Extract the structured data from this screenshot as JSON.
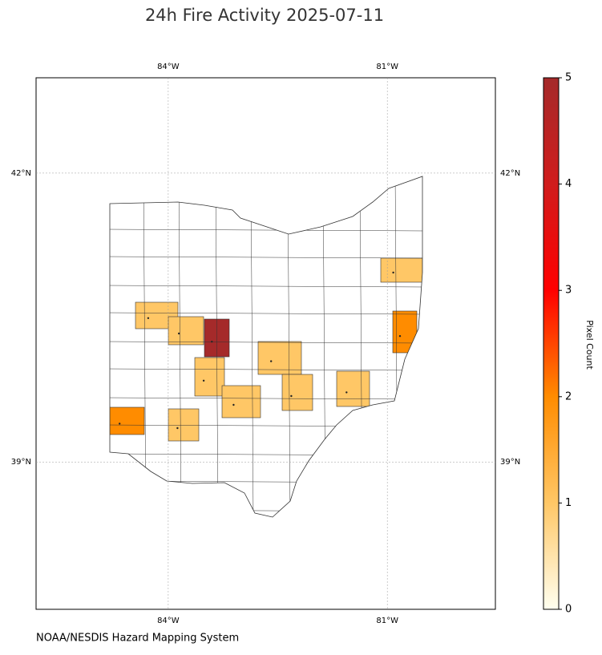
{
  "chart_data": {
    "type": "map",
    "title": "24h Fire Activity 2025-07-11",
    "source": "NOAA/NESDIS Hazard Mapping System",
    "xlim": [
      -85.81,
      -79.52
    ],
    "ylim": [
      37.47,
      42.99
    ],
    "xticks": [
      {
        "value": -84,
        "label": "84°W"
      },
      {
        "value": -81,
        "label": "81°W"
      }
    ],
    "yticks": [
      {
        "value": 39,
        "label": "39°N"
      },
      {
        "value": 42,
        "label": "42°N"
      }
    ],
    "grid": true,
    "colorbar_label": "Pixel Count",
    "clim": [
      0,
      5
    ],
    "cticks": [
      0,
      1,
      2,
      3,
      4,
      5
    ],
    "colormap": [
      "#fffff0",
      "#ffc766",
      "#ff8c00",
      "#ff0000",
      "#d01c1c",
      "#a52a2a"
    ],
    "regions": [
      {
        "value": 5
      },
      {
        "value": 2
      },
      {
        "value": 2
      },
      {
        "value": 1
      },
      {
        "value": 1
      },
      {
        "value": 1
      },
      {
        "value": 1
      },
      {
        "value": 1
      },
      {
        "value": 1
      },
      {
        "value": 1
      },
      {
        "value": 1
      },
      {
        "value": 1
      }
    ]
  }
}
